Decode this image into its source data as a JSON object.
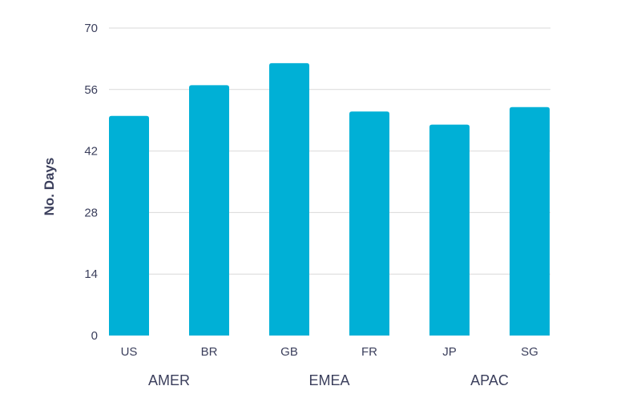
{
  "chart_data": {
    "type": "bar",
    "title": "",
    "xlabel": "",
    "ylabel": "No. Days",
    "categories": [
      "US",
      "BR",
      "GB",
      "FR",
      "JP",
      "SG"
    ],
    "groups": [
      {
        "label": "AMER",
        "categories": [
          "US",
          "BR"
        ]
      },
      {
        "label": "EMEA",
        "categories": [
          "GB",
          "FR"
        ]
      },
      {
        "label": "APAC",
        "categories": [
          "JP",
          "SG"
        ]
      }
    ],
    "values": [
      50,
      57,
      62,
      51,
      48,
      52
    ],
    "ylim": [
      0,
      70
    ],
    "yticks": [
      0,
      14,
      28,
      42,
      56,
      70
    ],
    "grid": true,
    "legend": "none",
    "bar_color": "#00b0d6",
    "text_color": "#3b3f5c",
    "grid_color": "#d9d9d9"
  }
}
